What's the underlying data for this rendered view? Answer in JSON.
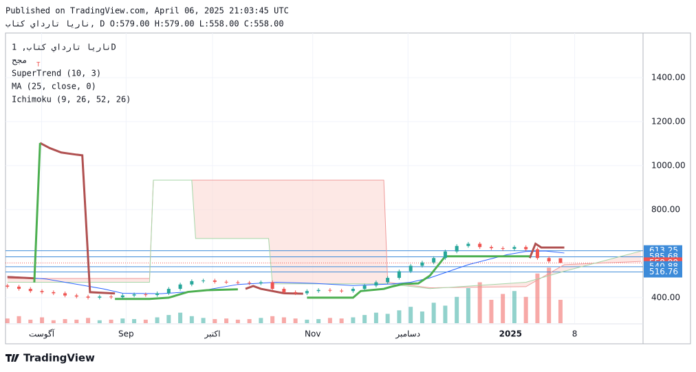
{
  "header": {
    "published": "Published on TradingView.com, April 06, 2025 21:03:45 UTC",
    "ohlc": "ناريا تارداي كتاب, D O:579.00 H:579.00 L:558.00 C:558.00"
  },
  "legend": {
    "symbol": "ناريا تارداي كتاب, 1D",
    "exchange": "مجح",
    "marker": "T",
    "indicators": [
      "SuperTrend (10, 3)",
      "MA (25, close, 0)",
      "Ichimoku (9, 26, 52, 26)"
    ]
  },
  "footer": {
    "brand": "TradingView"
  },
  "chart_data": {
    "type": "candlestick",
    "x": [
      0,
      3,
      6,
      9,
      12,
      15,
      18,
      21,
      24,
      27,
      30,
      33,
      36,
      39,
      42,
      45,
      48,
      51,
      54,
      57,
      60,
      63,
      66,
      69,
      72,
      75,
      78,
      81,
      84,
      87,
      90,
      93,
      96,
      99,
      102,
      105,
      108,
      111,
      114,
      117,
      120,
      123,
      126,
      129,
      132,
      135,
      138,
      141,
      144
    ],
    "open": [
      455,
      450,
      440,
      430,
      425,
      420,
      410,
      405,
      400,
      405,
      402,
      410,
      415,
      412,
      420,
      440,
      460,
      475,
      478,
      472,
      470,
      468,
      465,
      470,
      440,
      425,
      420,
      430,
      435,
      432,
      430,
      440,
      455,
      470,
      490,
      520,
      545,
      560,
      580,
      610,
      635,
      645,
      630,
      625,
      622,
      630,
      620,
      580,
      579
    ],
    "high": [
      463,
      458,
      448,
      438,
      433,
      428,
      418,
      413,
      413,
      413,
      418,
      423,
      423,
      428,
      448,
      468,
      483,
      486,
      486,
      480,
      478,
      476,
      478,
      478,
      448,
      433,
      438,
      443,
      443,
      440,
      448,
      463,
      478,
      498,
      528,
      553,
      568,
      588,
      618,
      643,
      653,
      653,
      638,
      633,
      638,
      638,
      628,
      588,
      579
    ],
    "low": [
      442,
      432,
      422,
      417,
      412,
      402,
      397,
      392,
      392,
      394,
      394,
      402,
      404,
      404,
      412,
      432,
      452,
      467,
      464,
      462,
      460,
      457,
      457,
      432,
      417,
      412,
      412,
      422,
      424,
      422,
      422,
      432,
      447,
      462,
      482,
      512,
      537,
      552,
      572,
      602,
      627,
      622,
      617,
      614,
      614,
      612,
      572,
      557,
      558
    ],
    "close": [
      450,
      440,
      430,
      425,
      420,
      410,
      405,
      400,
      405,
      402,
      410,
      415,
      412,
      420,
      440,
      460,
      475,
      478,
      472,
      470,
      468,
      465,
      470,
      440,
      425,
      420,
      430,
      435,
      432,
      430,
      440,
      455,
      470,
      490,
      520,
      545,
      560,
      580,
      610,
      635,
      645,
      630,
      625,
      622,
      630,
      620,
      580,
      565,
      558
    ],
    "volume": [
      8,
      12,
      6,
      10,
      5,
      7,
      6,
      9,
      5,
      6,
      8,
      7,
      6,
      10,
      14,
      18,
      12,
      9,
      7,
      8,
      6,
      7,
      9,
      12,
      10,
      8,
      6,
      7,
      9,
      8,
      10,
      14,
      18,
      16,
      22,
      28,
      20,
      35,
      30,
      45,
      60,
      70,
      40,
      50,
      55,
      45,
      85,
      95,
      40
    ],
    "volume_lim": [
      0,
      100
    ],
    "up_color": "#26a69a",
    "down_color": "#ef5350",
    "series": [
      {
        "name": "Span B",
        "color": "#ef9a9a",
        "x": [
          0,
          37,
          38,
          98,
          99,
          110,
          135,
          145,
          165
        ],
        "values": [
          487,
          487,
          934,
          934,
          470,
          445,
          450,
          550,
          565
        ]
      },
      {
        "name": "Span A",
        "color": "#a5d6a7",
        "x": [
          0,
          37,
          38,
          48,
          49,
          68,
          69,
          99,
          110,
          135,
          145,
          165
        ],
        "values": [
          470,
          470,
          934,
          934,
          669,
          669,
          463,
          463,
          441,
          470,
          520,
          612
        ]
      },
      {
        "name": "MA",
        "color": "#2962ff",
        "x": [
          0,
          5,
          10,
          15,
          20,
          25,
          30,
          40,
          50,
          60,
          70,
          80,
          90,
          100,
          105,
          110,
          115,
          120,
          130,
          135,
          140,
          145
        ],
        "values": [
          497,
          492,
          485,
          470,
          455,
          440,
          420,
          418,
          430,
          460,
          470,
          465,
          455,
          462,
          470,
          490,
          520,
          550,
          595,
          610,
          612,
          603
        ]
      },
      {
        "name": "SuperTrend down",
        "color": "#b05050",
        "x": [
          0,
          7,
          8,
          8.5,
          11,
          14,
          18,
          19.5,
          21.5,
          28,
          40,
          62,
          64,
          66,
          72,
          77,
          100,
          136,
          137.5,
          139,
          145
        ],
        "values": [
          494,
          488,
          null,
          1103,
          1080,
          1060,
          1050,
          1047,
          425,
          419,
          null,
          440,
          453,
          440,
          420,
          418,
          null,
          580,
          645,
          628,
          628
        ]
      },
      {
        "name": "SuperTrend up",
        "color": "#4caf50",
        "x": [
          7,
          8.5,
          20,
          28,
          29,
          37,
          42,
          47,
          52,
          60,
          70,
          78,
          90,
          92,
          98,
          100,
          103,
          107,
          110,
          114,
          136
        ],
        "values": [
          469,
          1103,
          null,
          394,
          394,
          394,
          400,
          426,
          434,
          438,
          null,
          400,
          400,
          430,
          440,
          450,
          462,
          465,
          500,
          588,
          588
        ]
      }
    ],
    "price_lines": [
      613.25,
      585.68,
      {
        "value": 558,
        "label": "558.00"
      },
      540.88,
      516.76
    ],
    "price_line_colors": [
      "#3d8bd9",
      "#3d8bd9",
      "#ef5350",
      "#3d8bd9",
      "#3d8bd9"
    ],
    "ylim": [
      284,
      1603
    ],
    "yticks": [
      {
        "value": 400,
        "label": "400.00"
      },
      {
        "value": 800,
        "label": "800.00"
      },
      {
        "value": 1000,
        "label": "1000.00"
      },
      {
        "value": 1200,
        "label": "1200.00"
      },
      {
        "value": 1400,
        "label": "1400.00"
      }
    ],
    "xlim": [
      -0.5,
      165.5
    ],
    "xticks": [
      {
        "value": 8.9,
        "label": "آگوست"
      },
      {
        "value": 30.9,
        "label": "Sep"
      },
      {
        "value": 53.4,
        "label": "اکتبر"
      },
      {
        "value": 79.5,
        "label": "Nov"
      },
      {
        "value": 104.3,
        "label": "دسامبر"
      },
      {
        "value": 131,
        "label": "2025"
      },
      {
        "value": 147.7,
        "label": "8"
      }
    ],
    "grid": true
  }
}
